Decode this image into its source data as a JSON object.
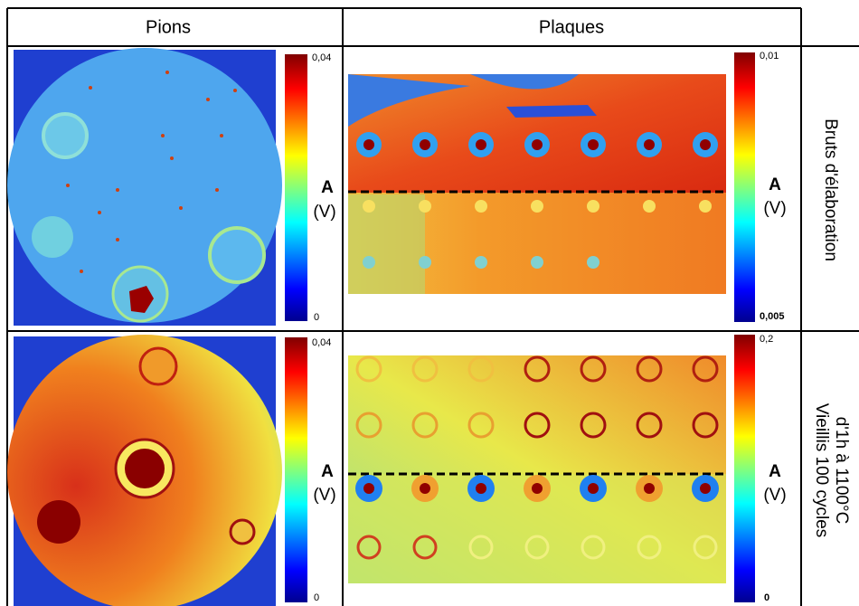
{
  "header": {
    "columns": [
      "Pions",
      "Plaques"
    ]
  },
  "rows": [
    {
      "label": [
        "Bruts d'élaboration"
      ],
      "pions_scale": {
        "max": "0,04",
        "min": "0",
        "symbol": "A",
        "unit": "(V)"
      },
      "plaques_scale": {
        "max": "0,01",
        "min": "0,005",
        "symbol": "A",
        "unit": "(V)"
      }
    },
    {
      "label": [
        "Vieillis 100 cycles",
        "d'1h à 1100°C"
      ],
      "pions_scale": {
        "max": "0,04",
        "min": "0",
        "symbol": "A",
        "unit": "(V)"
      },
      "plaques_scale": {
        "max": "0,2",
        "min": "0",
        "symbol": "A",
        "unit": "(V)"
      }
    }
  ]
}
